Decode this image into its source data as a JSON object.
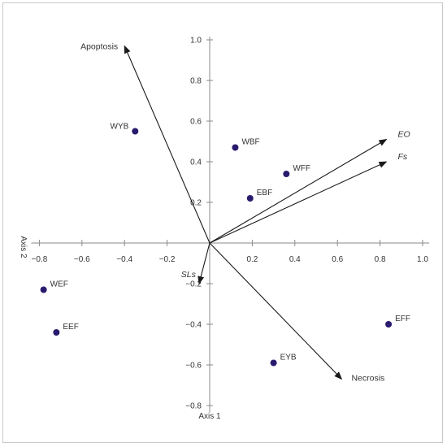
{
  "chart_data": {
    "type": "scatter",
    "xlabel": "Axis 1",
    "ylabel": "Axis 2",
    "xlim": [
      -0.8,
      1.0
    ],
    "ylim": [
      -0.8,
      1.0
    ],
    "xticks": [
      "−0.8",
      "−0.6",
      "−0.4",
      "−0.2",
      "0.2",
      "0.4",
      "0.6",
      "0.8",
      "1.0"
    ],
    "yticks": [
      "1.0",
      "0.8",
      "0.6",
      "0.4",
      "0.2",
      "−0.2",
      "−0.4",
      "−0.6",
      "−0.8"
    ],
    "grid": false,
    "marker_color": "#2a1a6e",
    "points": [
      {
        "label": "WYB",
        "x": -0.35,
        "y": 0.55
      },
      {
        "label": "WBF",
        "x": 0.12,
        "y": 0.47
      },
      {
        "label": "WFF",
        "x": 0.36,
        "y": 0.34
      },
      {
        "label": "EBF",
        "x": 0.19,
        "y": 0.22
      },
      {
        "label": "WEF",
        "x": -0.78,
        "y": -0.23
      },
      {
        "label": "EEF",
        "x": -0.72,
        "y": -0.44
      },
      {
        "label": "EYB",
        "x": 0.3,
        "y": -0.59
      },
      {
        "label": "EFF",
        "x": 0.84,
        "y": -0.4
      }
    ],
    "vectors": [
      {
        "label": "Apoptosis",
        "x": -0.4,
        "y": 0.97,
        "italic": false
      },
      {
        "label": "EO",
        "x": 0.83,
        "y": 0.51,
        "italic": true
      },
      {
        "label": "Fs",
        "x": 0.83,
        "y": 0.4,
        "italic": true
      },
      {
        "label": "SLs",
        "x": -0.05,
        "y": -0.2,
        "italic": true
      },
      {
        "label": "Necrosis",
        "x": 0.62,
        "y": -0.67,
        "italic": false
      }
    ]
  }
}
